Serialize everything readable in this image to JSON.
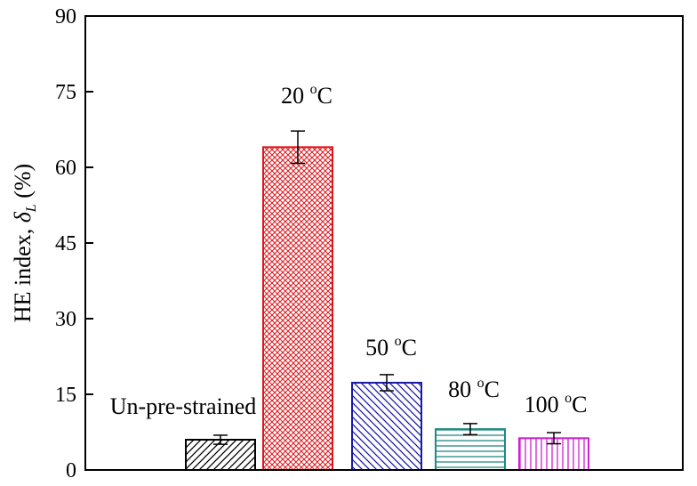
{
  "chart_data": {
    "type": "bar",
    "ylabel": "HE index, δL (%)",
    "ylabel_parts": {
      "prefix": "HE index, ",
      "symbol": "δ",
      "subscript": "L",
      "suffix": " (%)"
    },
    "ylim": [
      0,
      90
    ],
    "yticks": [
      0,
      15,
      30,
      45,
      60,
      75,
      90
    ],
    "grid": false,
    "categories": [
      "Un-pre-strained",
      "20 °C",
      "50 °C",
      "80 °C",
      "100 °C"
    ],
    "label_parts": [
      {
        "text": "Un-pre-strained",
        "sup": "",
        "tail": ""
      },
      {
        "text": "20 ",
        "sup": "o",
        "tail": "C"
      },
      {
        "text": "50 ",
        "sup": "o",
        "tail": "C"
      },
      {
        "text": "80 ",
        "sup": "o",
        "tail": "C"
      },
      {
        "text": "100 ",
        "sup": "o",
        "tail": "C"
      }
    ],
    "values": [
      6.0,
      64.0,
      17.3,
      8.1,
      6.3
    ],
    "errors": [
      0.9,
      3.2,
      1.6,
      1.1,
      1.1
    ],
    "colors": [
      "#000000",
      "#e0151a",
      "#1a1aa6",
      "#1f8a84",
      "#d21ed2"
    ],
    "patterns": [
      "diagonal",
      "crosshatch",
      "diagonal-reverse",
      "horizontal",
      "vertical"
    ]
  }
}
